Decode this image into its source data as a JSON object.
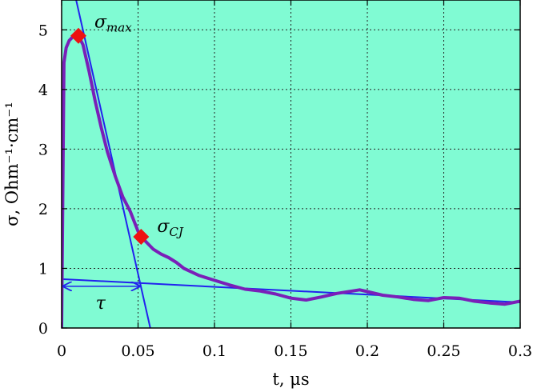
{
  "chart_data": {
    "type": "line",
    "title": "",
    "xlabel": "t, μs",
    "ylabel": "σ, Ohm⁻¹·cm⁻¹",
    "xlim": [
      0,
      0.3
    ],
    "ylim": [
      0,
      5.5
    ],
    "grid": true,
    "xticks": [
      0,
      0.05,
      0.1,
      0.15,
      0.2,
      0.25,
      0.3
    ],
    "xtick_labels": [
      "0",
      "0.05",
      "0.1",
      "0.15",
      "0.2",
      "0.25",
      "0.3"
    ],
    "yticks": [
      0,
      1,
      2,
      3,
      4,
      5
    ],
    "ytick_labels": [
      "0",
      "1",
      "2",
      "3",
      "4",
      "5"
    ],
    "series": [
      {
        "color": "#7a1fb8",
        "x": [
          0,
          0.0015,
          0.003,
          0.005,
          0.008,
          0.011,
          0.014,
          0.018,
          0.022,
          0.026,
          0.03,
          0.035,
          0.04,
          0.045,
          0.05,
          0.055,
          0.06,
          0.065,
          0.07,
          0.075,
          0.08,
          0.09,
          0.1,
          0.11,
          0.12,
          0.13,
          0.14,
          0.15,
          0.16,
          0.17,
          0.18,
          0.19,
          0.195,
          0.2,
          0.21,
          0.22,
          0.23,
          0.24,
          0.25,
          0.26,
          0.27,
          0.28,
          0.29,
          0.3
        ],
        "y": [
          0,
          4.45,
          4.7,
          4.82,
          4.9,
          4.9,
          4.75,
          4.3,
          3.8,
          3.35,
          2.95,
          2.55,
          2.2,
          1.95,
          1.62,
          1.45,
          1.32,
          1.24,
          1.18,
          1.1,
          1.0,
          0.88,
          0.8,
          0.72,
          0.65,
          0.62,
          0.57,
          0.5,
          0.47,
          0.52,
          0.58,
          0.62,
          0.64,
          0.61,
          0.55,
          0.52,
          0.48,
          0.46,
          0.51,
          0.5,
          0.45,
          0.42,
          0.4,
          0.45
        ]
      }
    ],
    "lines": [
      {
        "color": "#2222ee",
        "x": [
          0.0095,
          0.058
        ],
        "y": [
          5.5,
          0
        ]
      },
      {
        "color": "#2222ee",
        "x": [
          0,
          0.3
        ],
        "y": [
          0.82,
          0.43
        ]
      }
    ],
    "markers": [
      {
        "label": "σ_max",
        "x": 0.011,
        "y": 4.9,
        "color": "#ee1111"
      },
      {
        "label": "σ_CJ",
        "x": 0.052,
        "y": 1.53,
        "color": "#ee1111"
      }
    ],
    "annotations": {
      "sigma_max": {
        "base": "σ",
        "sub": "max"
      },
      "sigma_cj": {
        "base": "σ",
        "sub": "CJ"
      },
      "tau": {
        "text": "τ",
        "x_start": 0,
        "x_end": 0.051,
        "y": 0.7
      }
    },
    "background": "#80fbd3"
  }
}
